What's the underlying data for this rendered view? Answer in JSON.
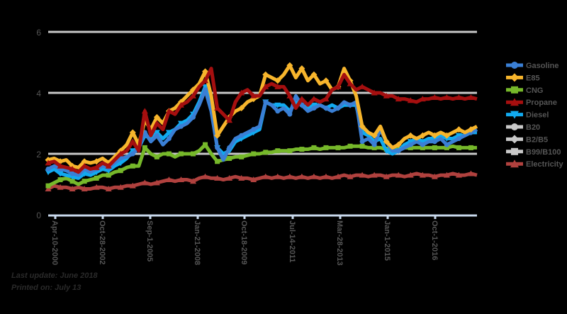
{
  "footer": {
    "last_update": "Last update: June 2018",
    "printed_on": "Printed on: July 13"
  },
  "chart_data": {
    "type": "line",
    "title": "",
    "xlabel": "",
    "ylabel": "",
    "ylim": [
      0,
      6
    ],
    "yticks": [
      0,
      2,
      4,
      6
    ],
    "grid": true,
    "legend_position": "right",
    "x_tick_labels": [
      "Apr-10-2000",
      "Oct-28-2002",
      "Sep-1-2005",
      "Jan-21-2008",
      "Oct-18-2009",
      "Jul-14-2011",
      "Mar-28-2013",
      "Jan-1-2015",
      "Oct-1-2016"
    ],
    "x_start": "Apr-2000",
    "x_end": "Apr-2018",
    "series": [
      {
        "name": "Gasoline",
        "color": "#3a7fd5",
        "marker": "circle",
        "values": [
          1.5,
          1.6,
          1.5,
          1.45,
          1.35,
          1.3,
          1.5,
          1.4,
          1.5,
          1.6,
          1.55,
          1.7,
          1.85,
          1.9,
          2.0,
          2.2,
          2.7,
          2.4,
          2.6,
          2.3,
          2.5,
          2.8,
          2.9,
          3.0,
          3.2,
          3.6,
          4.1,
          3.4,
          2.2,
          1.8,
          2.2,
          2.5,
          2.6,
          2.7,
          2.8,
          2.9,
          3.7,
          3.6,
          3.4,
          3.5,
          3.3,
          3.9,
          3.6,
          3.4,
          3.5,
          3.6,
          3.5,
          3.4,
          3.5,
          3.7,
          3.6,
          3.7,
          2.4,
          2.5,
          2.3,
          2.8,
          2.4,
          2.1,
          2.1,
          2.2,
          2.3,
          2.4,
          2.3,
          2.4,
          2.4,
          2.5,
          2.3,
          2.4,
          2.5,
          2.6,
          2.7,
          2.8
        ]
      },
      {
        "name": "E85",
        "color": "#f7b52c",
        "marker": "diamond",
        "values": [
          1.8,
          1.85,
          1.75,
          1.8,
          1.6,
          1.55,
          1.75,
          1.7,
          1.75,
          1.85,
          1.7,
          1.9,
          2.1,
          2.3,
          2.7,
          2.3,
          3.1,
          2.8,
          3.2,
          3.0,
          3.4,
          3.5,
          3.7,
          3.9,
          4.1,
          4.3,
          4.7,
          3.9,
          2.6,
          2.9,
          3.2,
          3.4,
          3.5,
          3.7,
          3.8,
          3.9,
          4.6,
          4.5,
          4.4,
          4.6,
          4.9,
          4.5,
          4.8,
          4.4,
          4.6,
          4.3,
          4.4,
          4.1,
          4.2,
          4.8,
          4.4,
          3.9,
          2.9,
          2.7,
          2.6,
          2.9,
          2.4,
          2.2,
          2.3,
          2.5,
          2.6,
          2.5,
          2.6,
          2.7,
          2.6,
          2.7,
          2.6,
          2.7,
          2.8,
          2.7,
          2.8,
          2.9
        ]
      },
      {
        "name": "CNG",
        "color": "#76b82a",
        "marker": "square",
        "values": [
          0.95,
          1.05,
          1.15,
          1.2,
          1.1,
          1.0,
          1.1,
          1.15,
          1.2,
          1.3,
          1.3,
          1.4,
          1.45,
          1.55,
          1.6,
          1.6,
          2.2,
          2.0,
          1.9,
          2.0,
          2.0,
          1.9,
          2.0,
          2.0,
          2.0,
          2.1,
          2.3,
          2.0,
          1.75,
          1.8,
          1.85,
          1.9,
          1.9,
          1.95,
          2.0,
          2.0,
          2.05,
          2.05,
          2.1,
          2.1,
          2.1,
          2.15,
          2.15,
          2.15,
          2.2,
          2.15,
          2.2,
          2.2,
          2.2,
          2.2,
          2.25,
          2.25,
          2.25,
          2.2,
          2.2,
          2.2,
          2.15,
          2.15,
          2.15,
          2.2,
          2.2,
          2.2,
          2.2,
          2.2,
          2.2,
          2.2,
          2.2,
          2.25,
          2.2,
          2.2,
          2.2,
          2.2
        ]
      },
      {
        "name": "Propane",
        "color": "#a50f0f",
        "marker": "triangle",
        "values": [
          1.7,
          1.75,
          1.6,
          1.55,
          1.5,
          1.4,
          1.6,
          1.5,
          1.55,
          1.7,
          1.6,
          1.8,
          2.0,
          2.1,
          2.4,
          2.1,
          3.4,
          2.6,
          3.0,
          2.8,
          3.4,
          3.3,
          3.6,
          3.7,
          3.9,
          4.2,
          4.4,
          4.8,
          3.5,
          3.3,
          3.1,
          3.7,
          4.0,
          4.1,
          3.9,
          3.9,
          4.2,
          4.3,
          4.2,
          4.2,
          3.9,
          3.5,
          3.8,
          3.6,
          3.8,
          3.7,
          3.8,
          4.1,
          4.2,
          4.6,
          4.3,
          4.1,
          4.2,
          4.1,
          4.0,
          4.0,
          3.9,
          3.9,
          3.8,
          3.8,
          3.75,
          3.7,
          3.8,
          3.8,
          3.85,
          3.8,
          3.85,
          3.8,
          3.85,
          3.8,
          3.85,
          3.8
        ]
      },
      {
        "name": "Diesel",
        "color": "#11aaf0",
        "marker": "triangle-down",
        "values": [
          1.4,
          1.5,
          1.35,
          1.3,
          1.25,
          1.2,
          1.35,
          1.3,
          1.4,
          1.5,
          1.45,
          1.6,
          1.7,
          1.85,
          2.1,
          2.2,
          2.6,
          2.5,
          2.7,
          2.5,
          2.7,
          2.8,
          3.0,
          3.1,
          3.3,
          3.7,
          4.2,
          3.5,
          2.2,
          2.0,
          2.1,
          2.4,
          2.5,
          2.6,
          2.7,
          2.8,
          3.7,
          3.6,
          3.6,
          3.6,
          3.4,
          3.7,
          3.6,
          3.5,
          3.6,
          3.6,
          3.5,
          3.6,
          3.5,
          3.6,
          3.6,
          3.6,
          2.7,
          2.6,
          2.4,
          2.5,
          2.1,
          2.0,
          2.1,
          2.3,
          2.4,
          2.5,
          2.4,
          2.5,
          2.5,
          2.6,
          2.5,
          2.5,
          2.6,
          2.6,
          2.7,
          2.7
        ]
      },
      {
        "name": "B20",
        "color": "#c8c8c8",
        "marker": "circle",
        "values": []
      },
      {
        "name": "B2/B5",
        "color": "#c8c8c8",
        "marker": "diamond",
        "values": []
      },
      {
        "name": "B99/B100",
        "color": "#c8c8c8",
        "marker": "square",
        "values": []
      },
      {
        "name": "Electricity",
        "color": "#b0413e",
        "marker": "triangle",
        "values": [
          0.85,
          0.95,
          0.9,
          0.9,
          0.85,
          0.9,
          0.85,
          0.85,
          0.9,
          0.9,
          0.85,
          0.9,
          0.9,
          0.95,
          0.95,
          1.0,
          1.05,
          1.0,
          1.05,
          1.1,
          1.15,
          1.1,
          1.15,
          1.15,
          1.1,
          1.2,
          1.25,
          1.2,
          1.2,
          1.15,
          1.2,
          1.25,
          1.2,
          1.2,
          1.15,
          1.2,
          1.25,
          1.2,
          1.25,
          1.2,
          1.25,
          1.2,
          1.25,
          1.2,
          1.25,
          1.2,
          1.25,
          1.2,
          1.25,
          1.3,
          1.25,
          1.3,
          1.3,
          1.25,
          1.3,
          1.3,
          1.25,
          1.3,
          1.3,
          1.25,
          1.3,
          1.35,
          1.3,
          1.3,
          1.25,
          1.3,
          1.3,
          1.35,
          1.3,
          1.3,
          1.35,
          1.3
        ]
      }
    ]
  },
  "reference_lines": {
    "color": "#c8c8c8",
    "values": [
      2,
      4,
      6
    ]
  }
}
